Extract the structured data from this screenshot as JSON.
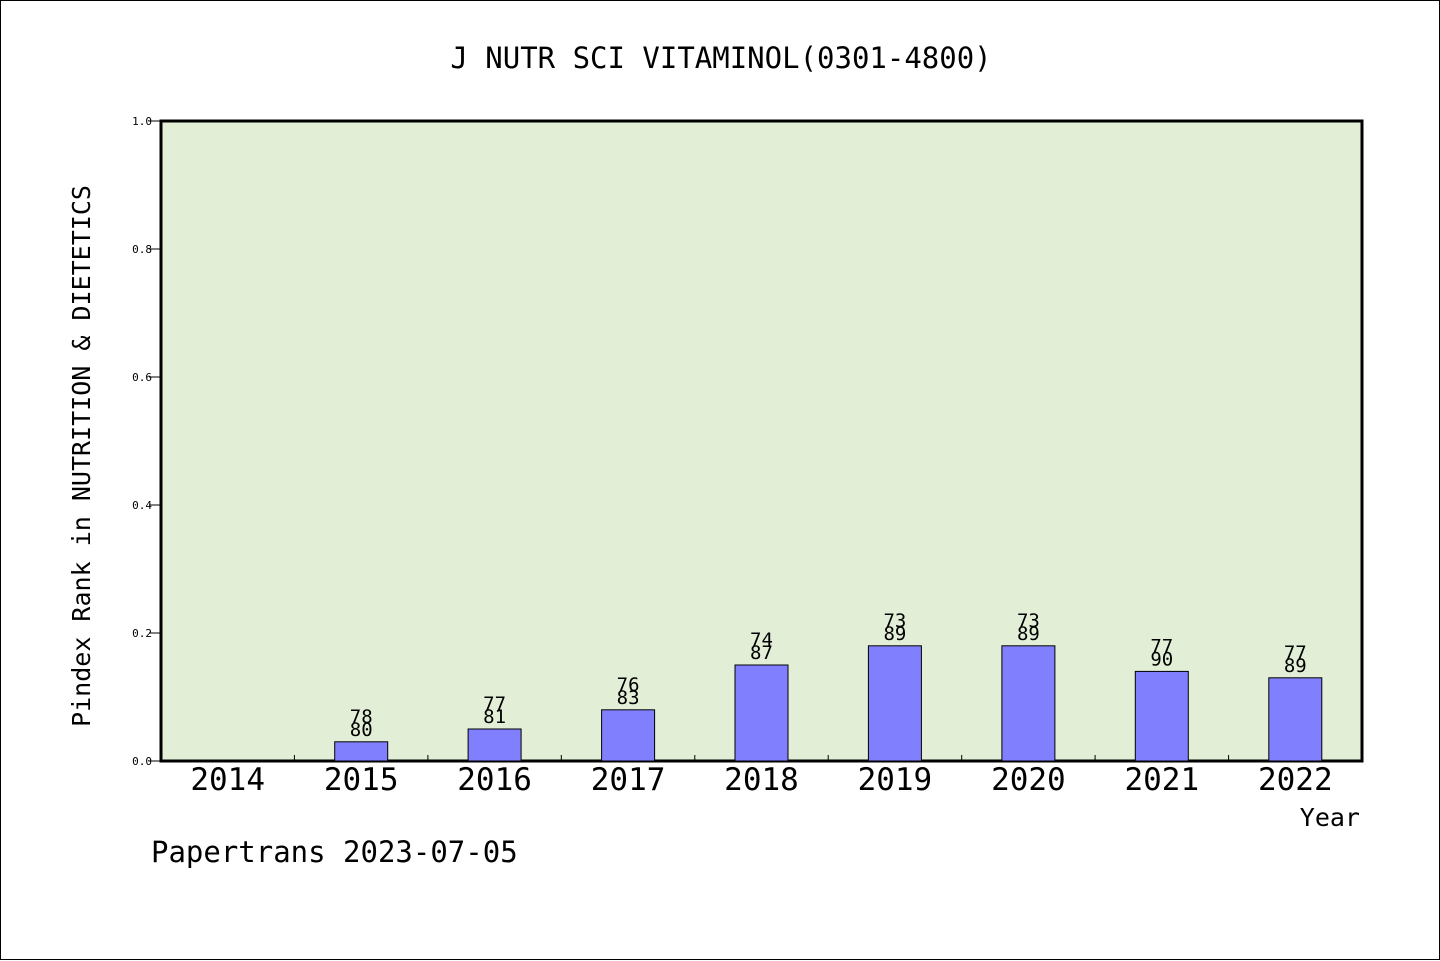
{
  "footer": {
    "credit": "Papertrans 2023-07-05"
  },
  "colors": {
    "plot_background": "#e2efd6",
    "bar_fill": "#8080ff",
    "axis": "#000000"
  },
  "chart_data": {
    "type": "bar",
    "title": "J NUTR SCI VITAMINOL(0301-4800)",
    "xlabel": "Year",
    "ylabel": "Pindex Rank in NUTRITION & DIETETICS",
    "categories": [
      "2014",
      "2015",
      "2016",
      "2017",
      "2018",
      "2019",
      "2020",
      "2021",
      "2022"
    ],
    "values": [
      null,
      0.03,
      0.05,
      0.08,
      0.15,
      0.18,
      0.18,
      0.14,
      0.13
    ],
    "label_top": [
      "",
      "78",
      "77",
      "76",
      "74",
      "73",
      "73",
      "77",
      "77"
    ],
    "label_bottom": [
      "",
      "80",
      "81",
      "83",
      "87",
      "89",
      "89",
      "90",
      "89"
    ],
    "ylim": [
      0,
      1.0
    ],
    "yticks": [
      "0.0",
      "0.2",
      "0.4",
      "0.6",
      "0.8",
      "1.0"
    ],
    "grid": false,
    "legend": "none"
  }
}
